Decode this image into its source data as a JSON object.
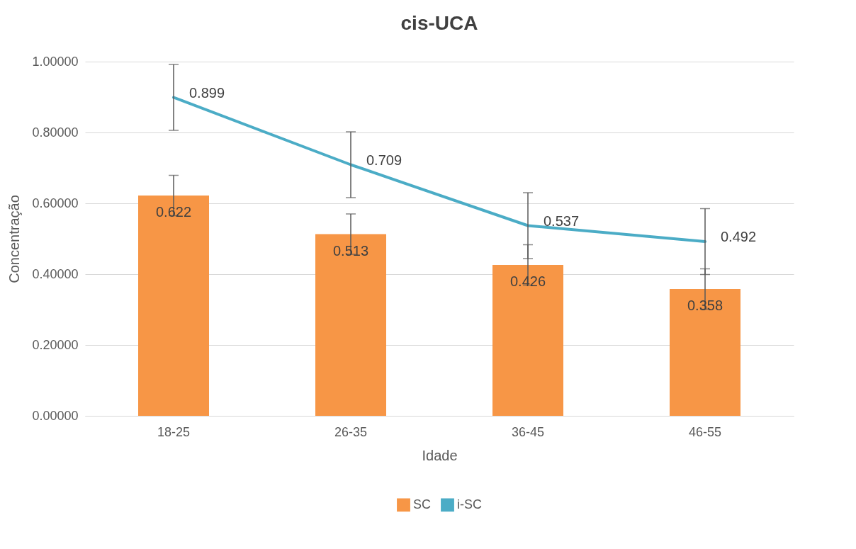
{
  "chart_data": {
    "type": "bar",
    "title": "cis-UCA",
    "xlabel": "Idade",
    "ylabel": "Concentração",
    "categories": [
      "18-25",
      "26-35",
      "36-45",
      "46-55"
    ],
    "series": [
      {
        "name": "SC",
        "color": "#f79646",
        "values": [
          0.622,
          0.513,
          0.426,
          0.358
        ],
        "errors": [
          0.057,
          0.057,
          0.057,
          0.057
        ]
      },
      {
        "name": "i-SC",
        "type": "line",
        "color": "#4bacc6",
        "values": [
          0.899,
          0.709,
          0.537,
          0.492
        ],
        "errors": [
          0.093,
          0.093,
          0.093,
          0.093
        ]
      }
    ],
    "ylim": [
      0,
      1
    ],
    "yticks": [
      {
        "value": 0,
        "label": "0.00000"
      },
      {
        "value": 0.2,
        "label": "0.20000"
      },
      {
        "value": 0.4,
        "label": "0.40000"
      },
      {
        "value": 0.6,
        "label": "0.60000"
      },
      {
        "value": 0.8,
        "label": "0.80000"
      },
      {
        "value": 1,
        "label": "1.00000"
      }
    ],
    "grid": "y",
    "legend": "bottom",
    "data_labels": true
  }
}
